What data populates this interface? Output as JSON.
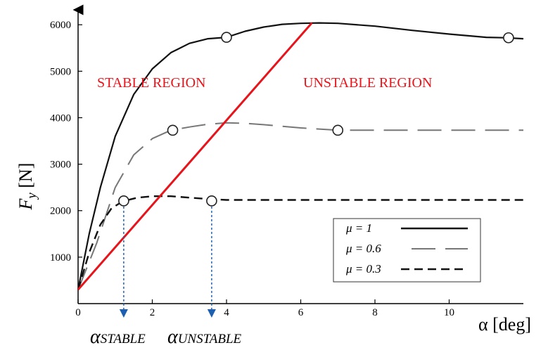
{
  "chart_data": {
    "type": "line",
    "title": "",
    "xlabel": "α [deg]",
    "ylabel": "F_y [N]",
    "xlim": [
      0,
      12
    ],
    "ylim": [
      0,
      6200
    ],
    "x_ticks": [
      0,
      2,
      4,
      6,
      8,
      10
    ],
    "y_ticks": [
      1000,
      2000,
      3000,
      4000,
      5000,
      6000
    ],
    "grid": false,
    "legend_position": "bottom-right",
    "colors": {
      "mu1": "#111111",
      "mu06": "#777777",
      "mu03": "#111111",
      "stability": "#e8141b",
      "arrows": "#1f5fb0",
      "markers": "#ffffff"
    },
    "series": [
      {
        "name": "μ = 1",
        "style": "solid",
        "x": [
          0,
          0.3,
          0.6,
          1.0,
          1.5,
          2.0,
          2.5,
          3.0,
          3.5,
          4.0,
          4.5,
          5.0,
          5.5,
          6.0,
          6.5,
          7.0,
          8.0,
          9.0,
          10.0,
          11.0,
          11.5,
          12.0
        ],
        "y": [
          300,
          1500,
          2500,
          3600,
          4500,
          5050,
          5400,
          5600,
          5700,
          5730,
          5860,
          5950,
          6010,
          6030,
          6040,
          6030,
          5970,
          5880,
          5800,
          5730,
          5720,
          5700
        ],
        "markers": [
          {
            "x": 4.0,
            "y": 5730
          },
          {
            "x": 11.6,
            "y": 5720
          }
        ]
      },
      {
        "name": "μ = 0.6",
        "style": "long-dash",
        "x": [
          0,
          0.5,
          1.0,
          1.5,
          2.0,
          2.5,
          3.0,
          3.5,
          4.0,
          4.5,
          5.0,
          6.0,
          7.0,
          8.0,
          10.0,
          12.0
        ],
        "y": [
          300,
          1300,
          2500,
          3200,
          3550,
          3730,
          3800,
          3860,
          3890,
          3880,
          3850,
          3780,
          3730,
          3730,
          3730,
          3730
        ],
        "markers": [
          {
            "x": 2.55,
            "y": 3730
          },
          {
            "x": 7.0,
            "y": 3730
          }
        ]
      },
      {
        "name": "μ = 0.3",
        "style": "dash",
        "x": [
          0,
          0.3,
          0.6,
          0.9,
          1.2,
          1.6,
          2.0,
          2.5,
          3.0,
          3.5,
          4.0,
          5.0,
          6.0,
          8.0,
          10.0,
          12.0
        ],
        "y": [
          300,
          1100,
          1700,
          2050,
          2200,
          2280,
          2310,
          2310,
          2280,
          2250,
          2230,
          2230,
          2230,
          2230,
          2230,
          2230
        ],
        "markers": [
          {
            "x": 1.23,
            "y": 2210
          },
          {
            "x": 3.6,
            "y": 2210
          }
        ]
      }
    ],
    "stability_line": {
      "x": [
        0,
        6.3
      ],
      "y": [
        300,
        6040
      ]
    },
    "annotations": {
      "stable": "STABLE REGION",
      "unstable": "UNSTABLE REGION",
      "alpha_stable": "α",
      "alpha_stable_sub": "STABLE",
      "alpha_unstable": "α",
      "alpha_unstable_sub": "UNSTABLE",
      "alpha_stable_x": 1.23,
      "alpha_unstable_x": 3.6
    }
  }
}
